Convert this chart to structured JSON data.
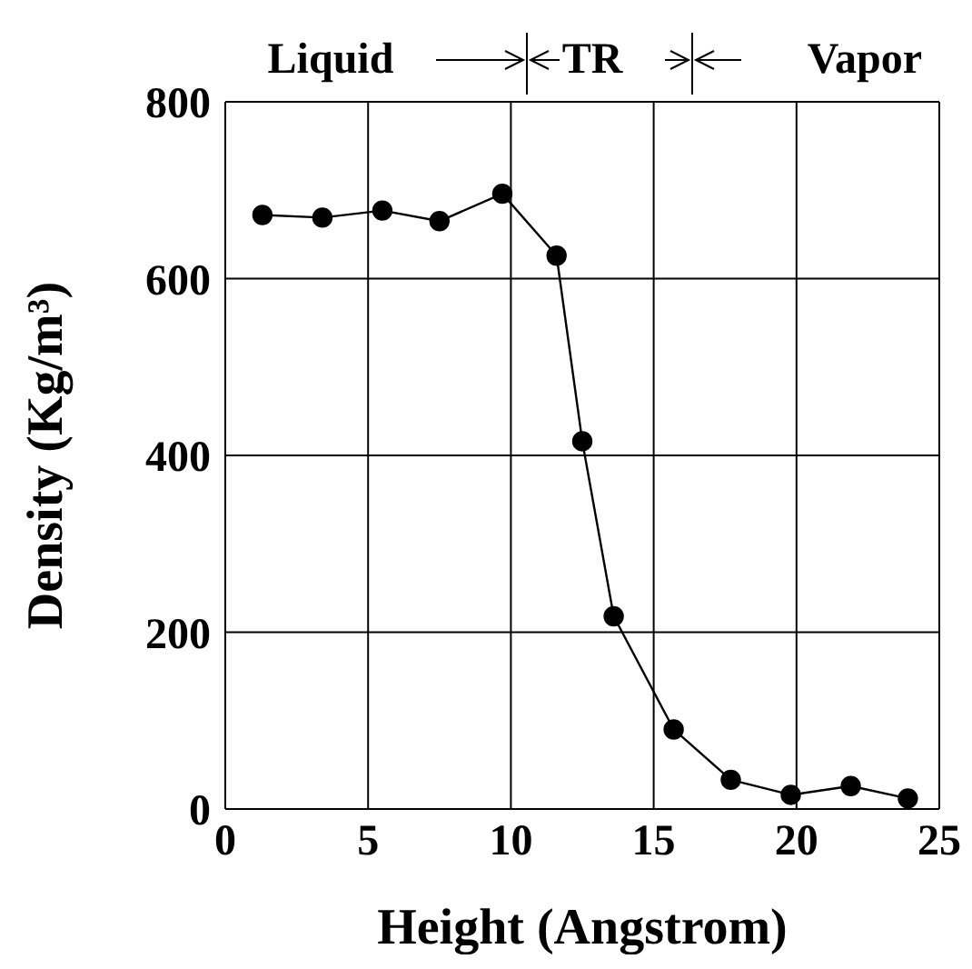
{
  "chart_data": {
    "type": "line",
    "xlabel": "Height (Angstrom)",
    "ylabel": "Density (Kg/m³)",
    "annotations": [
      "Liquid",
      "TR",
      "Vapor"
    ],
    "x": [
      1.3,
      3.4,
      5.5,
      7.5,
      9.7,
      11.6,
      12.5,
      13.6,
      15.7,
      17.7,
      19.8,
      21.9,
      23.9
    ],
    "series": [
      {
        "color": "#000000",
        "values": [
          672,
          669,
          677,
          665,
          696,
          626,
          416,
          218,
          90,
          33,
          16,
          26,
          12
        ]
      }
    ],
    "xlim": [
      0,
      25
    ],
    "xticks": [
      0,
      5,
      10,
      15,
      20,
      25
    ],
    "ylim": [
      0,
      800
    ],
    "yticks": [
      0,
      200,
      400,
      600,
      800
    ],
    "grid": true,
    "marker": "circle",
    "line_style": "solid",
    "legend": false
  }
}
